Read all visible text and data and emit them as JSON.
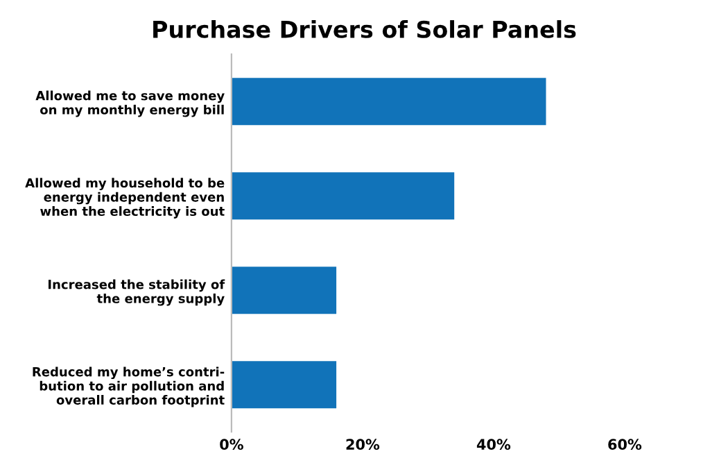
{
  "chart_data": {
    "type": "bar",
    "orientation": "horizontal",
    "title": "Purchase Drivers of Solar Panels",
    "categories": [
      "Allowed me to save money\non my monthly energy bill",
      "Allowed my household to be\nenergy independent even\nwhen the electricity is out",
      "Increased the stability of\nthe energy supply",
      "Reduced my home’s contri-\nbution to air pollution and\noverall carbon footprint"
    ],
    "values": [
      48,
      34,
      16,
      16
    ],
    "color": "#1173b9",
    "xlim": [
      0,
      60
    ],
    "xticks": [
      {
        "value": 0,
        "label": "0%"
      },
      {
        "value": 20,
        "label": "20%"
      },
      {
        "value": 40,
        "label": "40%"
      },
      {
        "value": 60,
        "label": "60%"
      }
    ],
    "grid": false,
    "legend": false
  }
}
